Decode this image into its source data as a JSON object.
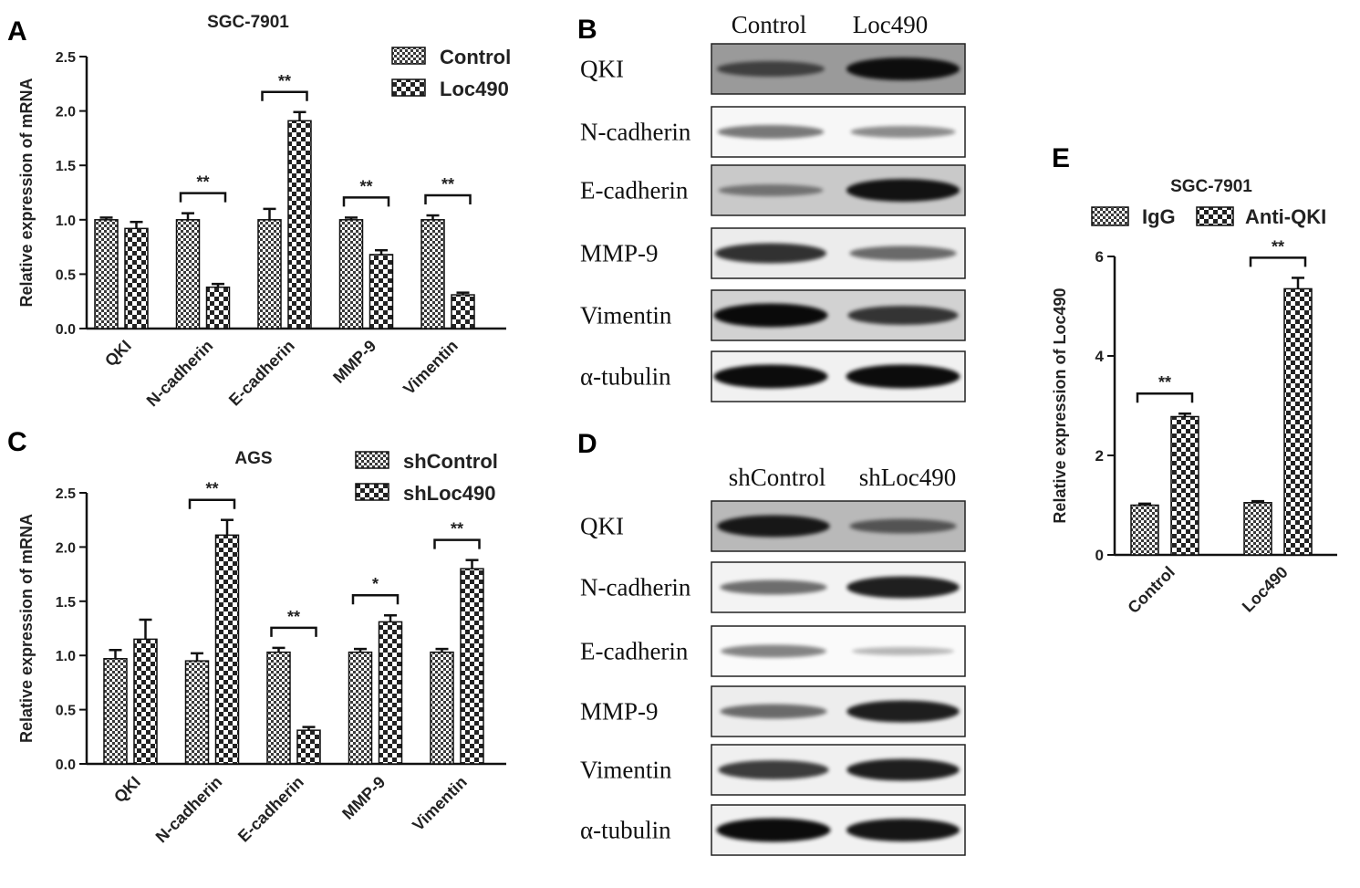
{
  "panels": {
    "A": {
      "letter": "A"
    },
    "B": {
      "letter": "B"
    },
    "C": {
      "letter": "C"
    },
    "D": {
      "letter": "D"
    },
    "E": {
      "letter": "E"
    }
  },
  "blot_B": {
    "columns": [
      "Control",
      "Loc490"
    ],
    "rows": [
      {
        "label": "QKI",
        "bg": "#9a9a9a",
        "bands": [
          0.55,
          0.95
        ]
      },
      {
        "label": "N-cadherin",
        "bg": "#f7f7f7",
        "bands": [
          0.45,
          0.35
        ]
      },
      {
        "label": "E-cadherin",
        "bg": "#c9c9c9",
        "bands": [
          0.35,
          0.95
        ]
      },
      {
        "label": "MMP-9",
        "bg": "#ececec",
        "bands": [
          0.8,
          0.5
        ]
      },
      {
        "label": "Vimentin",
        "bg": "#d2d2d2",
        "bands": [
          1.0,
          0.75
        ]
      },
      {
        "label": "α-tubulin",
        "bg": "#f1f1f1",
        "bands": [
          1.0,
          1.0
        ]
      }
    ]
  },
  "blot_D": {
    "columns": [
      "shControl",
      "shLoc490"
    ],
    "rows": [
      {
        "label": "QKI",
        "bg": "#b9b9b9",
        "bands": [
          0.9,
          0.5
        ]
      },
      {
        "label": "N-cadherin",
        "bg": "#f3f3f3",
        "bands": [
          0.5,
          0.9
        ]
      },
      {
        "label": "E-cadherin",
        "bg": "#fafafa",
        "bands": [
          0.4,
          0.15
        ]
      },
      {
        "label": "MMP-9",
        "bg": "#ededed",
        "bands": [
          0.5,
          0.9
        ]
      },
      {
        "label": "Vimentin",
        "bg": "#f0f0f0",
        "bands": [
          0.75,
          0.9
        ]
      },
      {
        "label": "α-tubulin",
        "bg": "#f1f1f1",
        "bands": [
          1.0,
          0.95
        ]
      }
    ]
  },
  "chart_data": [
    {
      "id": "A",
      "type": "bar",
      "title": "SGC-7901",
      "ylabel": "Relative expression of mRNA",
      "ylim": [
        0,
        2.5
      ],
      "yticks": [
        "0.0",
        "0.5",
        "1.0",
        "1.5",
        "2.0",
        "2.5"
      ],
      "categories": [
        "QKI",
        "N-cadherin",
        "E-cadherin",
        "MMP-9",
        "Vimentin"
      ],
      "series": [
        {
          "name": "Control",
          "values": [
            1.0,
            1.0,
            1.0,
            1.0,
            1.0
          ],
          "errors": [
            0.02,
            0.06,
            0.1,
            0.02,
            0.04
          ]
        },
        {
          "name": "Loc490",
          "values": [
            0.92,
            0.38,
            1.91,
            0.68,
            0.31
          ],
          "errors": [
            0.06,
            0.03,
            0.08,
            0.04,
            0.02
          ]
        }
      ],
      "significance": [
        "",
        "**",
        "**",
        "**",
        "**"
      ]
    },
    {
      "id": "C",
      "type": "bar",
      "title": "AGS",
      "ylabel": "Relative expression of mRNA",
      "ylim": [
        0,
        2.5
      ],
      "yticks": [
        "0.0",
        "0.5",
        "1.0",
        "1.5",
        "2.0",
        "2.5"
      ],
      "categories": [
        "QKI",
        "N-cadherin",
        "E-cadherin",
        "MMP-9",
        "Vimentin"
      ],
      "series": [
        {
          "name": "shControl",
          "values": [
            0.97,
            0.95,
            1.03,
            1.03,
            1.03
          ],
          "errors": [
            0.08,
            0.07,
            0.04,
            0.03,
            0.03
          ]
        },
        {
          "name": "shLoc490",
          "values": [
            1.15,
            2.11,
            0.31,
            1.31,
            1.8
          ],
          "errors": [
            0.18,
            0.14,
            0.03,
            0.06,
            0.08
          ]
        }
      ],
      "significance": [
        "",
        "**",
        "**",
        "*",
        "**"
      ]
    },
    {
      "id": "E",
      "type": "bar",
      "title": "SGC-7901",
      "ylabel": "Relative expression of Loc490",
      "ylim": [
        0,
        6
      ],
      "yticks": [
        "0",
        "2",
        "4",
        "6"
      ],
      "categories": [
        "Control",
        "Loc490"
      ],
      "series": [
        {
          "name": "IgG",
          "values": [
            1.0,
            1.05
          ],
          "errors": [
            0.03,
            0.03
          ]
        },
        {
          "name": "Anti-QKI",
          "values": [
            2.78,
            5.35
          ],
          "errors": [
            0.06,
            0.22
          ]
        }
      ],
      "significance": [
        "**",
        "**"
      ]
    }
  ]
}
